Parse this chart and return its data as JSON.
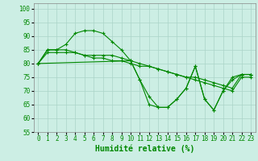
{
  "background_color": "#cceee4",
  "grid_color": "#aad4c8",
  "line_color": "#008800",
  "xlabel": "Humidité relative (%)",
  "xlabel_fontsize": 7,
  "tick_fontsize": 5.5,
  "xlim": [
    -0.5,
    23.5
  ],
  "ylim": [
    55,
    102
  ],
  "yticks": [
    55,
    60,
    65,
    70,
    75,
    80,
    85,
    90,
    95,
    100
  ],
  "xticks": [
    0,
    1,
    2,
    3,
    4,
    5,
    6,
    7,
    8,
    9,
    10,
    11,
    12,
    13,
    14,
    15,
    16,
    17,
    18,
    19,
    20,
    21,
    22,
    23
  ],
  "series": [
    {
      "x": [
        0,
        1,
        2,
        3,
        4,
        5,
        6,
        7,
        8,
        9,
        10,
        11,
        12,
        13,
        14,
        15,
        16,
        17,
        18,
        19,
        20,
        21,
        22,
        23
      ],
      "y": [
        80,
        85,
        85,
        87,
        91,
        92,
        92,
        91,
        88,
        85,
        81,
        74,
        65,
        64,
        64,
        67,
        71,
        79,
        67,
        63,
        70,
        75,
        76,
        76
      ]
    },
    {
      "x": [
        0,
        1,
        2,
        3,
        4,
        5,
        6,
        7,
        8,
        9,
        10,
        11,
        12,
        13,
        14,
        15,
        16,
        17,
        18,
        19,
        20,
        21,
        22,
        23
      ],
      "y": [
        80,
        85,
        85,
        85,
        84,
        83,
        83,
        83,
        83,
        82,
        81,
        80,
        79,
        78,
        77,
        76,
        75,
        75,
        74,
        73,
        72,
        71,
        76,
        76
      ]
    },
    {
      "x": [
        0,
        1,
        2,
        3,
        4,
        5,
        6,
        7,
        8,
        9,
        10,
        11,
        12,
        13,
        14,
        15,
        16,
        17,
        18,
        19,
        20,
        21,
        22,
        23
      ],
      "y": [
        80,
        84,
        84,
        84,
        84,
        83,
        82,
        82,
        81,
        81,
        80,
        79,
        79,
        78,
        77,
        76,
        75,
        74,
        73,
        72,
        71,
        70,
        75,
        75
      ]
    },
    {
      "x": [
        0,
        10,
        11,
        12,
        13,
        14,
        15,
        16,
        17,
        18,
        19,
        20,
        21,
        22,
        23
      ],
      "y": [
        80,
        81,
        74,
        68,
        64,
        64,
        67,
        71,
        79,
        67,
        63,
        70,
        74,
        76,
        76
      ]
    }
  ]
}
